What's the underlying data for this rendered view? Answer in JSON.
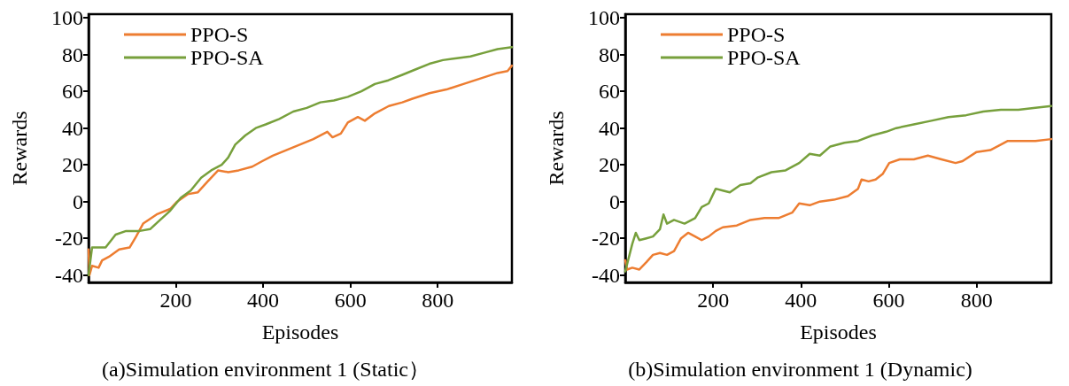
{
  "chart_data": [
    {
      "type": "line",
      "title": "(a)Simulation environment 1 (Static）",
      "xlabel": "Episodes",
      "ylabel": "Rewards",
      "xlim": [
        0,
        970
      ],
      "xticks": [
        200,
        400,
        600,
        800
      ],
      "ylim": [
        -44,
        102
      ],
      "yticks": [
        -40,
        -20,
        0,
        20,
        40,
        60,
        80,
        100
      ],
      "grid": false,
      "legend": "top left",
      "marker": "none",
      "line_style": "solid",
      "series": [
        {
          "name": "PPO-S",
          "color": "#ed7d31",
          "x": [
            0,
            2,
            8,
            23,
            31,
            47,
            70,
            94,
            109,
            125,
            156,
            187,
            203,
            227,
            250,
            273,
            297,
            320,
            344,
            375,
            398,
            422,
            453,
            484,
            515,
            547,
            559,
            578,
            594,
            617,
            633,
            656,
            688,
            719,
            742,
            781,
            820,
            859,
            898,
            937,
            960,
            970
          ],
          "values": [
            -26,
            -40,
            -35,
            -36,
            -32,
            -30,
            -26,
            -25,
            -19,
            -12,
            -7,
            -4,
            0,
            4,
            5,
            11,
            17,
            16,
            17,
            19,
            22,
            25,
            28,
            31,
            34,
            38,
            35,
            37,
            43,
            46,
            44,
            48,
            52,
            54,
            56,
            59,
            61,
            64,
            67,
            70,
            71,
            74
          ]
        },
        {
          "name": "PPO-SA",
          "color": "#77a03c",
          "x": [
            0,
            8,
            16,
            39,
            62,
            86,
            117,
            141,
            164,
            187,
            211,
            234,
            258,
            281,
            305,
            320,
            336,
            359,
            383,
            406,
            437,
            469,
            500,
            531,
            562,
            594,
            625,
            656,
            687,
            719,
            750,
            781,
            812,
            844,
            875,
            906,
            937,
            970
          ],
          "values": [
            -40,
            -25,
            -25,
            -25,
            -18,
            -16,
            -16,
            -15,
            -10,
            -5,
            2,
            6,
            13,
            17,
            20,
            24,
            31,
            36,
            40,
            42,
            45,
            49,
            51,
            54,
            55,
            57,
            60,
            64,
            66,
            69,
            72,
            75,
            77,
            78,
            79,
            81,
            83,
            84
          ]
        }
      ]
    },
    {
      "type": "line",
      "title": "(b)Simulation environment 1 (Dynamic)",
      "xlabel": "Episodes",
      "ylabel": "Rewards",
      "xlim": [
        0,
        970
      ],
      "xticks": [
        200,
        400,
        600,
        800
      ],
      "ylim": [
        -44,
        102
      ],
      "yticks": [
        -40,
        -20,
        0,
        20,
        40,
        60,
        80,
        100
      ],
      "grid": false,
      "legend": "top left",
      "marker": "none",
      "line_style": "solid",
      "series": [
        {
          "name": "PPO-S",
          "color": "#ed7d31",
          "x": [
            0,
            4,
            16,
            32,
            48,
            63,
            79,
            95,
            111,
            127,
            143,
            159,
            174,
            190,
            206,
            222,
            254,
            285,
            317,
            349,
            380,
            396,
            420,
            443,
            475,
            507,
            530,
            538,
            554,
            570,
            586,
            601,
            625,
            657,
            689,
            720,
            752,
            768,
            800,
            831,
            855,
            871,
            903,
            934,
            970
          ],
          "values": [
            -32,
            -37,
            -36,
            -37,
            -33,
            -29,
            -28,
            -29,
            -27,
            -20,
            -17,
            -19,
            -21,
            -19,
            -16,
            -14,
            -13,
            -10,
            -9,
            -9,
            -6,
            -1,
            -2,
            0,
            1,
            3,
            7,
            12,
            11,
            12,
            15,
            21,
            23,
            23,
            25,
            23,
            21,
            22,
            27,
            28,
            31,
            33,
            33,
            33,
            34
          ]
        },
        {
          "name": "PPO-SA",
          "color": "#77a03c",
          "x": [
            0,
            16,
            24,
            32,
            48,
            63,
            79,
            87,
            95,
            111,
            135,
            159,
            174,
            190,
            206,
            222,
            238,
            262,
            285,
            301,
            333,
            365,
            396,
            420,
            443,
            467,
            499,
            530,
            562,
            594,
            617,
            657,
            697,
            736,
            776,
            815,
            855,
            895,
            934,
            970
          ],
          "values": [
            -38,
            -23,
            -17,
            -21,
            -20,
            -19,
            -15,
            -7,
            -12,
            -10,
            -12,
            -9,
            -3,
            -1,
            7,
            6,
            5,
            9,
            10,
            13,
            16,
            17,
            21,
            26,
            25,
            30,
            32,
            33,
            36,
            38,
            40,
            42,
            44,
            46,
            47,
            49,
            50,
            50,
            51,
            52
          ]
        }
      ]
    }
  ]
}
